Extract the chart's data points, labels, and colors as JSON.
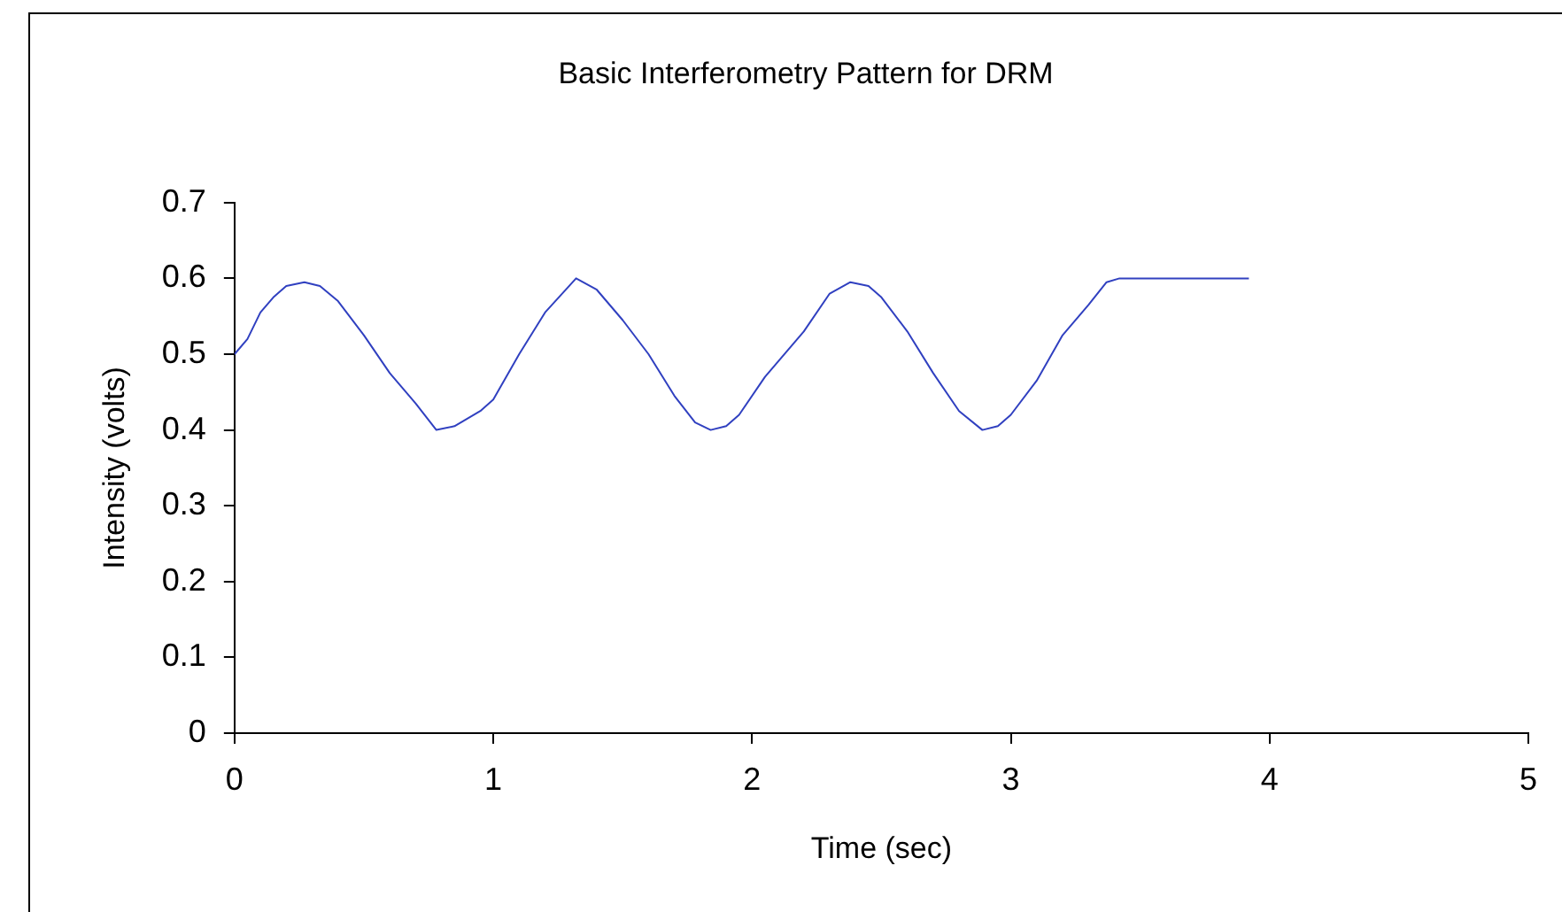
{
  "chart_data": {
    "type": "line",
    "title": "Basic Interferometry Pattern for DRM",
    "xlabel": "Time (sec)",
    "ylabel": "Intensity (volts)",
    "x": [
      0,
      0.05,
      0.1,
      0.15,
      0.2,
      0.27,
      0.33,
      0.4,
      0.5,
      0.6,
      0.7,
      0.78,
      0.85,
      0.95,
      1.0,
      1.1,
      1.2,
      1.32,
      1.4,
      1.5,
      1.6,
      1.7,
      1.78,
      1.84,
      1.9,
      1.95,
      2.05,
      2.2,
      2.3,
      2.38,
      2.45,
      2.5,
      2.6,
      2.7,
      2.8,
      2.89,
      2.95,
      3.0,
      3.1,
      3.2,
      3.3,
      3.37,
      3.42,
      3.92
    ],
    "series": [
      {
        "color": "#3040c0",
        "values": [
          0.5,
          0.52,
          0.555,
          0.575,
          0.59,
          0.595,
          0.59,
          0.57,
          0.525,
          0.475,
          0.435,
          0.4,
          0.405,
          0.425,
          0.44,
          0.5,
          0.555,
          0.6,
          0.585,
          0.545,
          0.5,
          0.445,
          0.41,
          0.4,
          0.405,
          0.42,
          0.47,
          0.53,
          0.58,
          0.595,
          0.59,
          0.575,
          0.53,
          0.475,
          0.425,
          0.4,
          0.405,
          0.42,
          0.465,
          0.525,
          0.565,
          0.595,
          0.6,
          0.6
        ]
      }
    ],
    "xlim": [
      0,
      5
    ],
    "xticks": [
      0,
      1,
      2,
      3,
      4,
      5
    ],
    "ylim": [
      0,
      0.7
    ],
    "yticks": [
      0,
      0.1,
      0.2,
      0.3,
      0.4,
      0.5,
      0.6,
      0.7
    ],
    "grid": false,
    "legend": false,
    "marker": "none",
    "line_style": "solid"
  }
}
